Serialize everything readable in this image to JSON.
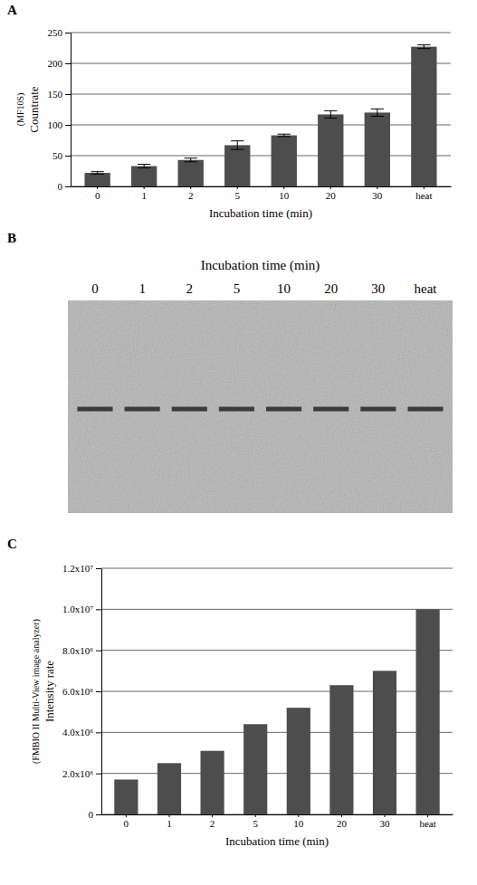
{
  "chart_data": [
    {
      "type": "bar",
      "panel_label": "A",
      "categories": [
        "0",
        "1",
        "2",
        "5",
        "10",
        "20",
        "30",
        "heat"
      ],
      "values": [
        22,
        33,
        43,
        67,
        83,
        117,
        120,
        227
      ],
      "errors": [
        2,
        3,
        3,
        7,
        2,
        6,
        6,
        3
      ],
      "color": "#4d4d4d",
      "ylim": [
        0,
        250
      ],
      "yticks": [
        0,
        50,
        100,
        150,
        200,
        250
      ],
      "grid": true,
      "x_label": "Incubation time (min)",
      "y_label": "Countrate",
      "y_label_note": "(MF10S)"
    },
    {
      "type": "gel",
      "panel_label": "B",
      "title": "Incubation time (min)",
      "categories": [
        "0",
        "1",
        "2",
        "5",
        "10",
        "20",
        "30",
        "heat"
      ]
    },
    {
      "type": "bar",
      "panel_label": "C",
      "categories": [
        "0",
        "1",
        "2",
        "5",
        "10",
        "20",
        "30",
        "heat"
      ],
      "values": [
        1700000,
        2500000,
        3100000,
        4400000,
        5200000,
        6300000,
        7000000,
        10000000
      ],
      "color": "#4d4d4d",
      "ylim": [
        0,
        12000000
      ],
      "yticks": [
        0,
        {
          "value": 2000000,
          "label": "2.0x10⁶"
        },
        {
          "value": 4000000,
          "label": "4.0x10⁶"
        },
        {
          "value": 6000000,
          "label": "6.0x10⁶"
        },
        {
          "value": 8000000,
          "label": "8.0x10⁶"
        },
        {
          "value": 10000000,
          "label": "1.0x10⁷"
        },
        {
          "value": 12000000,
          "label": "1.2x10⁷"
        }
      ],
      "grid": true,
      "x_label": "Incubation time (min)",
      "y_label": "Intensity rate",
      "y_label_note": "(FMBIO II Multi-View image analyzer)"
    }
  ]
}
